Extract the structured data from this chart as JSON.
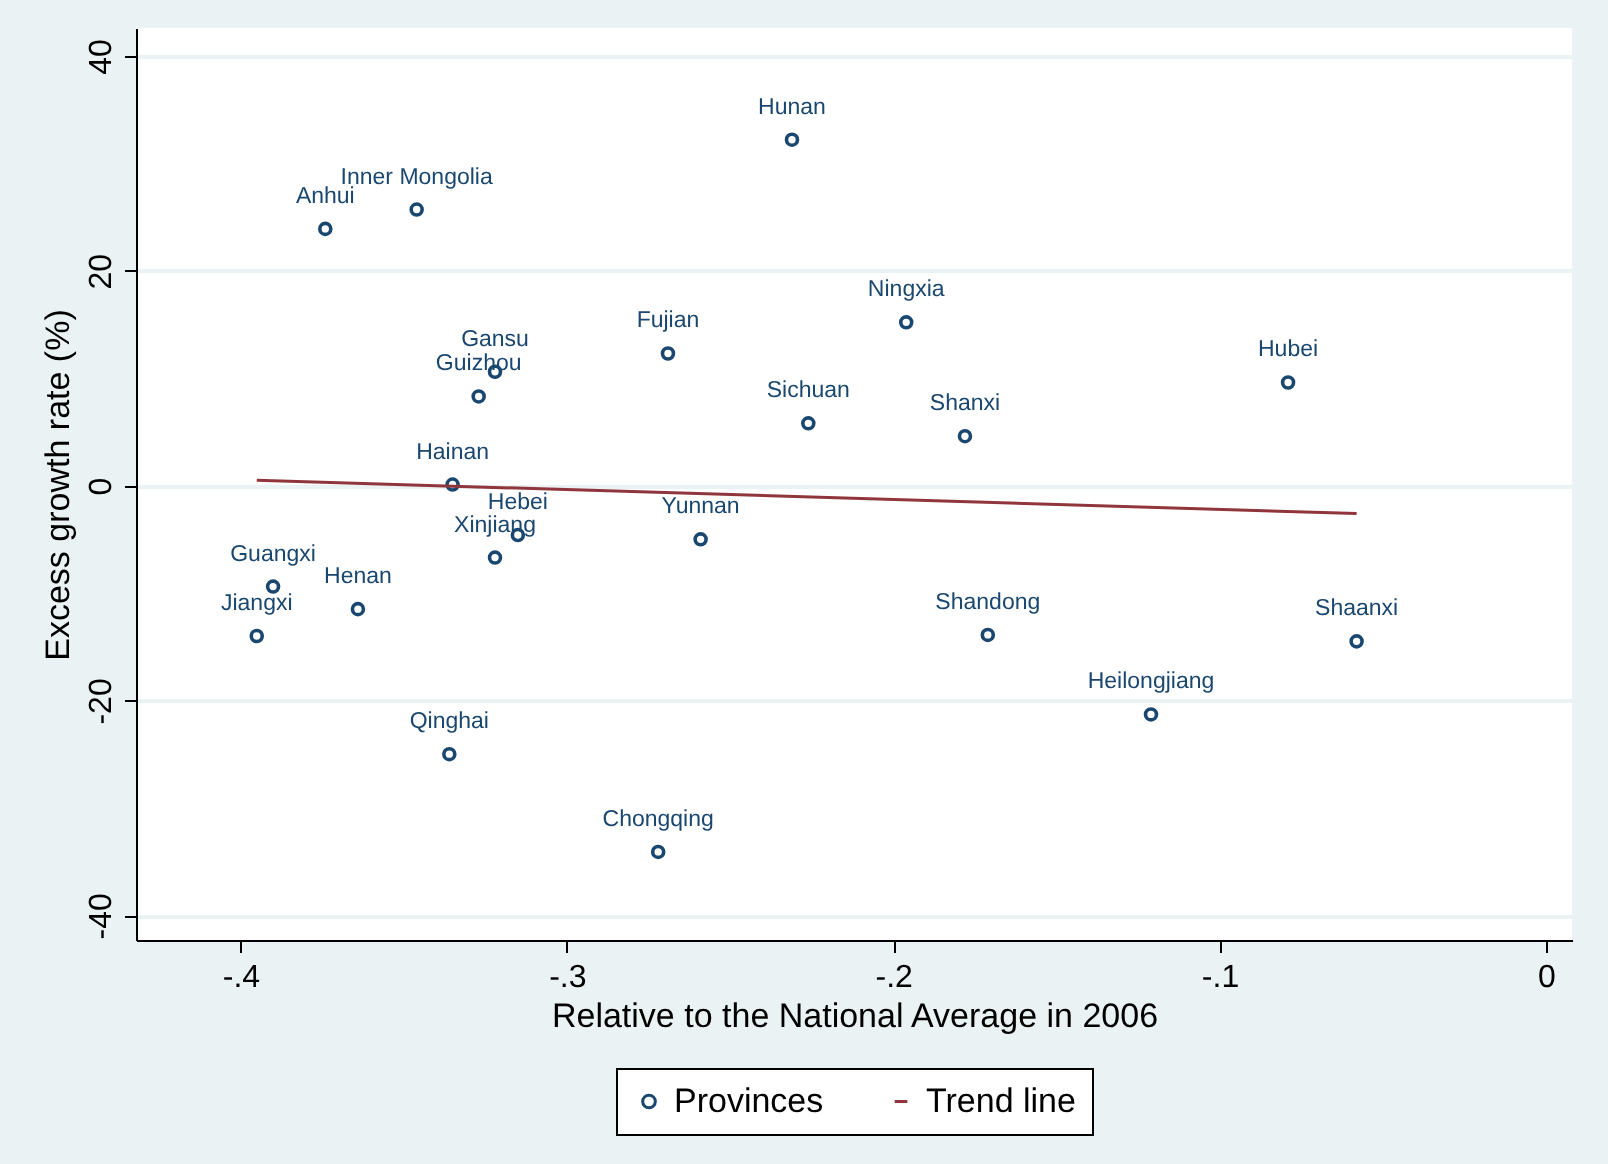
{
  "chart_data": {
    "type": "scatter",
    "xlabel": "Relative to the National Average in 2006",
    "ylabel": "Excess growth rate (%)",
    "xlim": [
      -0.432,
      0.008
    ],
    "ylim": [
      -42.3,
      42.6
    ],
    "xticks": [
      {
        "value": -0.4,
        "label": "-.4"
      },
      {
        "value": -0.3,
        "label": "-.3"
      },
      {
        "value": -0.2,
        "label": "-.2"
      },
      {
        "value": -0.1,
        "label": "-.1"
      },
      0
    ],
    "yticks": [
      -40,
      -20,
      0,
      20,
      40
    ],
    "grid": "y",
    "legend": "bottom",
    "series": [
      {
        "name": "Provinces",
        "color": "#1a476f",
        "marker": "circle",
        "x": [
          -0.374,
          -0.346,
          -0.231,
          -0.269,
          -0.322,
          -0.327,
          -0.226,
          -0.335,
          -0.315,
          -0.322,
          -0.259,
          -0.39,
          -0.364,
          -0.395,
          -0.336,
          -0.272,
          -0.196,
          -0.079,
          -0.178,
          -0.171,
          -0.121,
          -0.058
        ],
        "values": [
          23.9,
          25.7,
          32.2,
          12.3,
          10.6,
          8.3,
          5.8,
          0.1,
          -4.6,
          -6.7,
          -5.0,
          -9.4,
          -11.5,
          -14.0,
          -25.0,
          -34.1,
          15.2,
          9.6,
          4.6,
          -13.9,
          -21.3,
          -14.5
        ]
      },
      {
        "name": "Trend line",
        "type": "line",
        "color": "#90353b",
        "x": [
          -0.395,
          -0.058
        ],
        "values": [
          0.5,
          -2.6
        ]
      }
    ],
    "annotations": [
      {
        "text": "Anhui",
        "x": -0.374,
        "y": 23.9
      },
      {
        "text": "Inner Mongolia",
        "x": -0.346,
        "y": 25.7
      },
      {
        "text": "Hunan",
        "x": -0.231,
        "y": 32.2
      },
      {
        "text": "Fujian",
        "x": -0.269,
        "y": 12.3
      },
      {
        "text": "Gansu",
        "x": -0.322,
        "y": 10.6
      },
      {
        "text": "Guizhou",
        "x": -0.327,
        "y": 8.3
      },
      {
        "text": "Sichuan",
        "x": -0.226,
        "y": 5.8
      },
      {
        "text": "Hainan",
        "x": -0.335,
        "y": 0.1
      },
      {
        "text": "Hebei",
        "x": -0.315,
        "y": -4.6
      },
      {
        "text": "Xinjiang",
        "x": -0.322,
        "y": -6.7
      },
      {
        "text": "Yunnan",
        "x": -0.259,
        "y": -5.0
      },
      {
        "text": "Guangxi",
        "x": -0.39,
        "y": -9.4
      },
      {
        "text": "Henan",
        "x": -0.364,
        "y": -11.5
      },
      {
        "text": "Jiangxi",
        "x": -0.395,
        "y": -14.0
      },
      {
        "text": "Qinghai",
        "x": -0.336,
        "y": -25.0
      },
      {
        "text": "Chongqing",
        "x": -0.272,
        "y": -34.1
      },
      {
        "text": "Ningxia",
        "x": -0.196,
        "y": 15.2
      },
      {
        "text": "Hubei",
        "x": -0.079,
        "y": 9.6
      },
      {
        "text": "Shanxi",
        "x": -0.178,
        "y": 4.6
      },
      {
        "text": "Shandong",
        "x": -0.171,
        "y": -13.9
      },
      {
        "text": "Heilongjiang",
        "x": -0.121,
        "y": -21.3
      },
      {
        "text": "Shaanxi",
        "x": -0.058,
        "y": -14.5
      }
    ]
  }
}
